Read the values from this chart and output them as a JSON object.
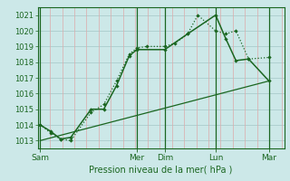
{
  "xlabel": "Pression niveau de la mer( hPa )",
  "background_color": "#cce8e8",
  "fig_color": "#cce8e8",
  "grid_color_h": "#aacccc",
  "grid_color_v": "#ddaaaa",
  "line_color": "#1a6620",
  "ylim": [
    1012.5,
    1021.5
  ],
  "yticks": [
    1013,
    1014,
    1015,
    1016,
    1017,
    1018,
    1019,
    1020,
    1021
  ],
  "xlim": [
    -0.1,
    9.6
  ],
  "day_labels": [
    "Sam",
    "Mer",
    "Dim",
    "Lun",
    "Mar"
  ],
  "day_positions": [
    0.0,
    3.8,
    4.9,
    6.9,
    9.0
  ],
  "vline_positions": [
    0.0,
    3.8,
    4.9,
    6.9,
    9.0
  ],
  "series1_x": [
    0.0,
    0.4,
    0.8,
    1.2,
    2.0,
    2.5,
    3.0,
    3.5,
    3.8,
    4.2,
    4.9,
    5.3,
    5.8,
    6.2,
    6.9,
    7.3,
    7.7,
    8.2,
    9.0
  ],
  "series1_y": [
    1014.0,
    1013.5,
    1013.1,
    1013.0,
    1014.8,
    1015.3,
    1016.8,
    1018.5,
    1018.9,
    1019.0,
    1019.0,
    1019.2,
    1019.8,
    1021.0,
    1020.0,
    1019.8,
    1020.0,
    1018.2,
    1018.3
  ],
  "series2_x": [
    0.0,
    0.4,
    0.8,
    1.2,
    2.0,
    2.5,
    3.0,
    3.5,
    3.8,
    4.9,
    5.8,
    6.9,
    7.3,
    7.7,
    8.2,
    9.0
  ],
  "series2_y": [
    1014.0,
    1013.6,
    1013.1,
    1013.2,
    1015.0,
    1015.0,
    1016.5,
    1018.4,
    1018.8,
    1018.8,
    1019.8,
    1021.0,
    1019.5,
    1018.1,
    1018.2,
    1016.8
  ],
  "series3_x": [
    0.0,
    9.0
  ],
  "series3_y": [
    1013.0,
    1016.8
  ],
  "xlabel_fontsize": 7,
  "ytick_fontsize": 6,
  "xtick_fontsize": 6.5
}
